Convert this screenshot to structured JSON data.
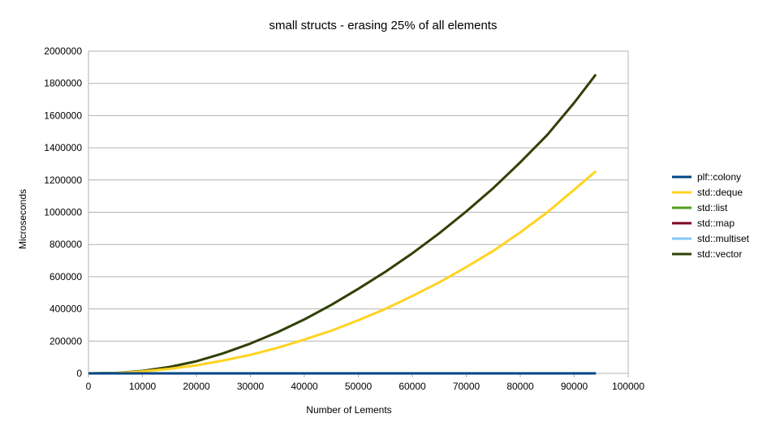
{
  "chart_data": {
    "type": "line",
    "title": "small structs - erasing 25% of all elements",
    "xlabel": "Number of Lements",
    "ylabel": "Microseconds",
    "xlim": [
      0,
      100000
    ],
    "ylim": [
      0,
      2000000
    ],
    "xticks": [
      0,
      10000,
      20000,
      30000,
      40000,
      50000,
      60000,
      70000,
      80000,
      90000,
      100000
    ],
    "yticks": [
      0,
      200000,
      400000,
      600000,
      800000,
      1000000,
      1200000,
      1400000,
      1600000,
      1800000,
      2000000
    ],
    "grid": "horizontal",
    "legend_position": "right",
    "series": [
      {
        "name": "plf::colony",
        "color": "#004586",
        "x": [
          0,
          5000,
          10000,
          20000,
          30000,
          40000,
          50000,
          60000,
          70000,
          80000,
          94000
        ],
        "y": [
          0,
          0,
          0,
          0,
          0,
          0,
          0,
          0,
          0,
          0,
          0
        ]
      },
      {
        "name": "std::deque",
        "color": "#ffd320",
        "x": [
          0,
          5000,
          10000,
          15000,
          20000,
          25000,
          30000,
          35000,
          40000,
          45000,
          50000,
          55000,
          60000,
          65000,
          70000,
          75000,
          80000,
          85000,
          90000,
          94000
        ],
        "y": [
          0,
          1000,
          12000,
          28000,
          50000,
          80000,
          115000,
          158000,
          210000,
          265000,
          330000,
          400000,
          480000,
          565000,
          660000,
          760000,
          875000,
          1000000,
          1140000,
          1255000
        ]
      },
      {
        "name": "std::list",
        "color": "#579d1c",
        "x": [
          0,
          5000,
          10000,
          20000,
          30000,
          40000,
          50000,
          60000,
          70000,
          80000,
          94000
        ],
        "y": [
          0,
          0,
          0,
          0,
          0,
          0,
          0,
          0,
          0,
          0,
          0
        ]
      },
      {
        "name": "std::map",
        "color": "#7e0021",
        "x": [
          0,
          5000,
          10000,
          20000,
          30000,
          40000,
          50000,
          60000,
          70000,
          80000,
          94000
        ],
        "y": [
          0,
          0,
          0,
          0,
          0,
          0,
          0,
          0,
          0,
          0,
          0
        ]
      },
      {
        "name": "std::multiset",
        "color": "#83caff",
        "x": [
          0,
          5000,
          10000,
          20000,
          30000,
          40000,
          50000,
          60000,
          70000,
          80000,
          94000
        ],
        "y": [
          0,
          0,
          0,
          0,
          0,
          0,
          0,
          0,
          0,
          0,
          0
        ]
      },
      {
        "name": "std::vector",
        "color": "#314004",
        "x": [
          0,
          5000,
          10000,
          15000,
          20000,
          25000,
          30000,
          35000,
          40000,
          45000,
          50000,
          55000,
          60000,
          65000,
          70000,
          75000,
          80000,
          85000,
          90000,
          94000
        ],
        "y": [
          0,
          2000,
          15000,
          40000,
          75000,
          125000,
          185000,
          255000,
          335000,
          425000,
          525000,
          630000,
          745000,
          870000,
          1005000,
          1150000,
          1310000,
          1480000,
          1680000,
          1855000
        ]
      }
    ]
  }
}
